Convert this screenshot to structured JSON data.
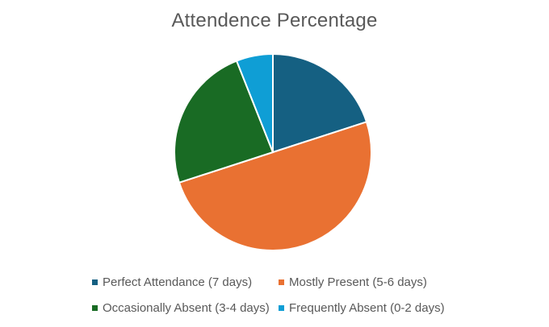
{
  "chart_data": {
    "type": "pie",
    "title": "Attendence Percentage",
    "categories": [
      "Perfect Attendance (7 days)",
      "Mostly Present (5-6 days)",
      "Occasionally Absent (3-4 days)",
      "Frequently Absent (0-2 days)"
    ],
    "values": [
      20,
      50,
      24,
      6
    ],
    "colors": [
      "#156082",
      "#E97132",
      "#196B24",
      "#0F9ED5"
    ],
    "legend_position": "bottom"
  }
}
